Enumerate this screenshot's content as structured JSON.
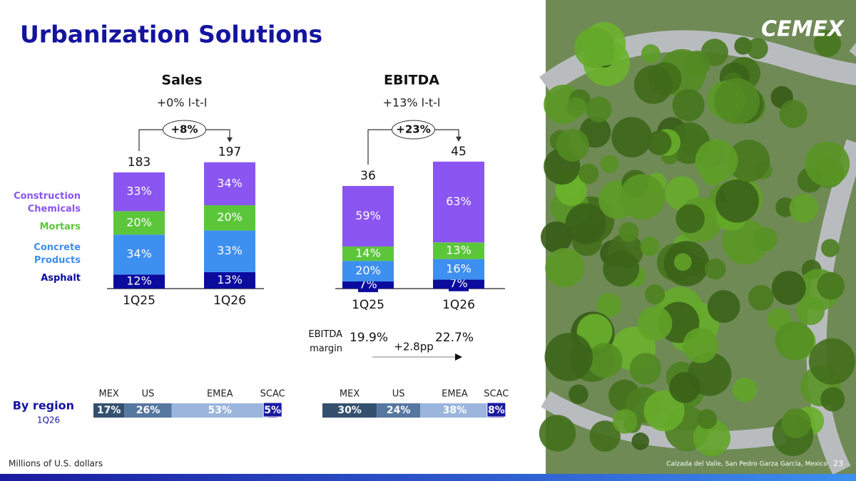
{
  "slide": {
    "title": "Urbanization Solutions",
    "footnote": "Millions of U.S. dollars",
    "logo": "CEMEX",
    "photo_caption": "Calzada del Valle, San Pedro Garza García, Mexico",
    "page_number": "23",
    "region_title": "By region",
    "region_period": "1Q26"
  },
  "chart_data": [
    {
      "type": "bar",
      "title": "Sales",
      "subtitle": "+0% l-t-l",
      "change": "+8%",
      "categories": [
        "1Q25",
        "1Q26"
      ],
      "totals": [
        183,
        197
      ],
      "ylim": [
        0,
        200
      ],
      "series": [
        {
          "name": "Asphalt",
          "color": "#0b0b9e",
          "values": [
            12,
            13
          ],
          "value_labels": [
            "12%",
            "13%"
          ]
        },
        {
          "name": "Concrete Products",
          "color": "#3d8ff0",
          "values": [
            34,
            33
          ],
          "value_labels": [
            "34%",
            "33%"
          ]
        },
        {
          "name": "Mortars",
          "color": "#5cc63a",
          "values": [
            20,
            20
          ],
          "value_labels": [
            "20%",
            "20%"
          ]
        },
        {
          "name": "Construction Chemicals",
          "color": "#8a55f0",
          "values": [
            33,
            34
          ],
          "value_labels": [
            "33%",
            "34%"
          ]
        }
      ]
    },
    {
      "type": "bar",
      "title": "EBITDA",
      "subtitle": "+13% l-t-l",
      "change": "+23%",
      "categories": [
        "1Q25",
        "1Q26"
      ],
      "totals": [
        36,
        45
      ],
      "ylim": [
        0,
        45
      ],
      "series": [
        {
          "color": "#0b0b9e",
          "values": [
            7,
            7
          ],
          "value_labels": [
            "7%",
            "7%"
          ]
        },
        {
          "color": "#3d8ff0",
          "values": [
            20,
            16
          ],
          "value_labels": [
            "20%",
            "16%"
          ]
        },
        {
          "color": "#5cc63a",
          "values": [
            14,
            13
          ],
          "value_labels": [
            "14%",
            "13%"
          ]
        },
        {
          "color": "#8a55f0",
          "values": [
            59,
            63
          ],
          "value_labels": [
            "59%",
            "63%"
          ]
        }
      ],
      "margin": {
        "label": "EBITDA margin",
        "values": [
          19.9,
          22.7
        ],
        "value_labels": [
          "19.9%",
          "22.7%"
        ],
        "change": "+2.8pp"
      }
    },
    {
      "type": "barh",
      "categories": [
        "MEX",
        "US",
        "EMEA",
        "SCAC"
      ],
      "values": [
        17,
        26,
        53,
        5
      ],
      "value_labels": [
        "17%",
        "26%",
        "53%",
        "5%"
      ],
      "xlim": [
        0,
        100
      ],
      "colors": [
        "#34506e",
        "#5577a0",
        "#9bb5dc",
        "#1a1aa0"
      ]
    },
    {
      "type": "barh",
      "categories": [
        "MEX",
        "US",
        "EMEA",
        "SCAC"
      ],
      "values": [
        30,
        24,
        38,
        8
      ],
      "value_labels": [
        "30%",
        "24%",
        "38%",
        "8%"
      ],
      "xlim": [
        0,
        100
      ],
      "colors": [
        "#34506e",
        "#5577a0",
        "#9bb5dc",
        "#1a1aa0"
      ]
    }
  ]
}
